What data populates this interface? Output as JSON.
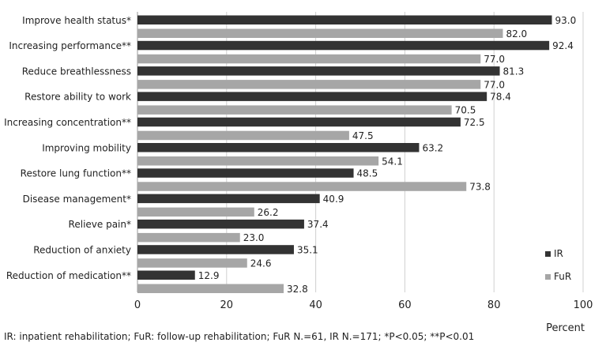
{
  "chart_data": {
    "type": "bar",
    "orientation": "horizontal",
    "categories": [
      "Improve health status*",
      "Increasing performance**",
      "Reduce breathlessness",
      "Restore ability to work",
      "Increasing concentration**",
      "Improving mobility",
      "Restore lung function**",
      "Disease management*",
      "Relieve pain*",
      "Reduction of anxiety",
      "Reduction of medication**"
    ],
    "series": [
      {
        "name": "IR",
        "color": "#333333",
        "values": [
          93.0,
          92.4,
          81.3,
          78.4,
          72.5,
          63.2,
          48.5,
          40.9,
          37.4,
          35.1,
          12.9
        ]
      },
      {
        "name": "FuR",
        "color": "#a6a6a6",
        "values": [
          82.0,
          77.0,
          77.0,
          70.5,
          47.5,
          54.1,
          73.8,
          26.2,
          23.0,
          24.6,
          32.8
        ]
      }
    ],
    "xlabel": "Percent",
    "xlim": [
      0,
      100
    ],
    "xticks": [
      0,
      20,
      40,
      60,
      80,
      100
    ],
    "grid": true,
    "legend": "bottom-right",
    "data_labels": true
  },
  "caption": "IR: inpatient rehabilitation; FuR: follow-up rehabilitation; FuR N.=61, IR N.=171; *P<0.05; **P<0.01"
}
